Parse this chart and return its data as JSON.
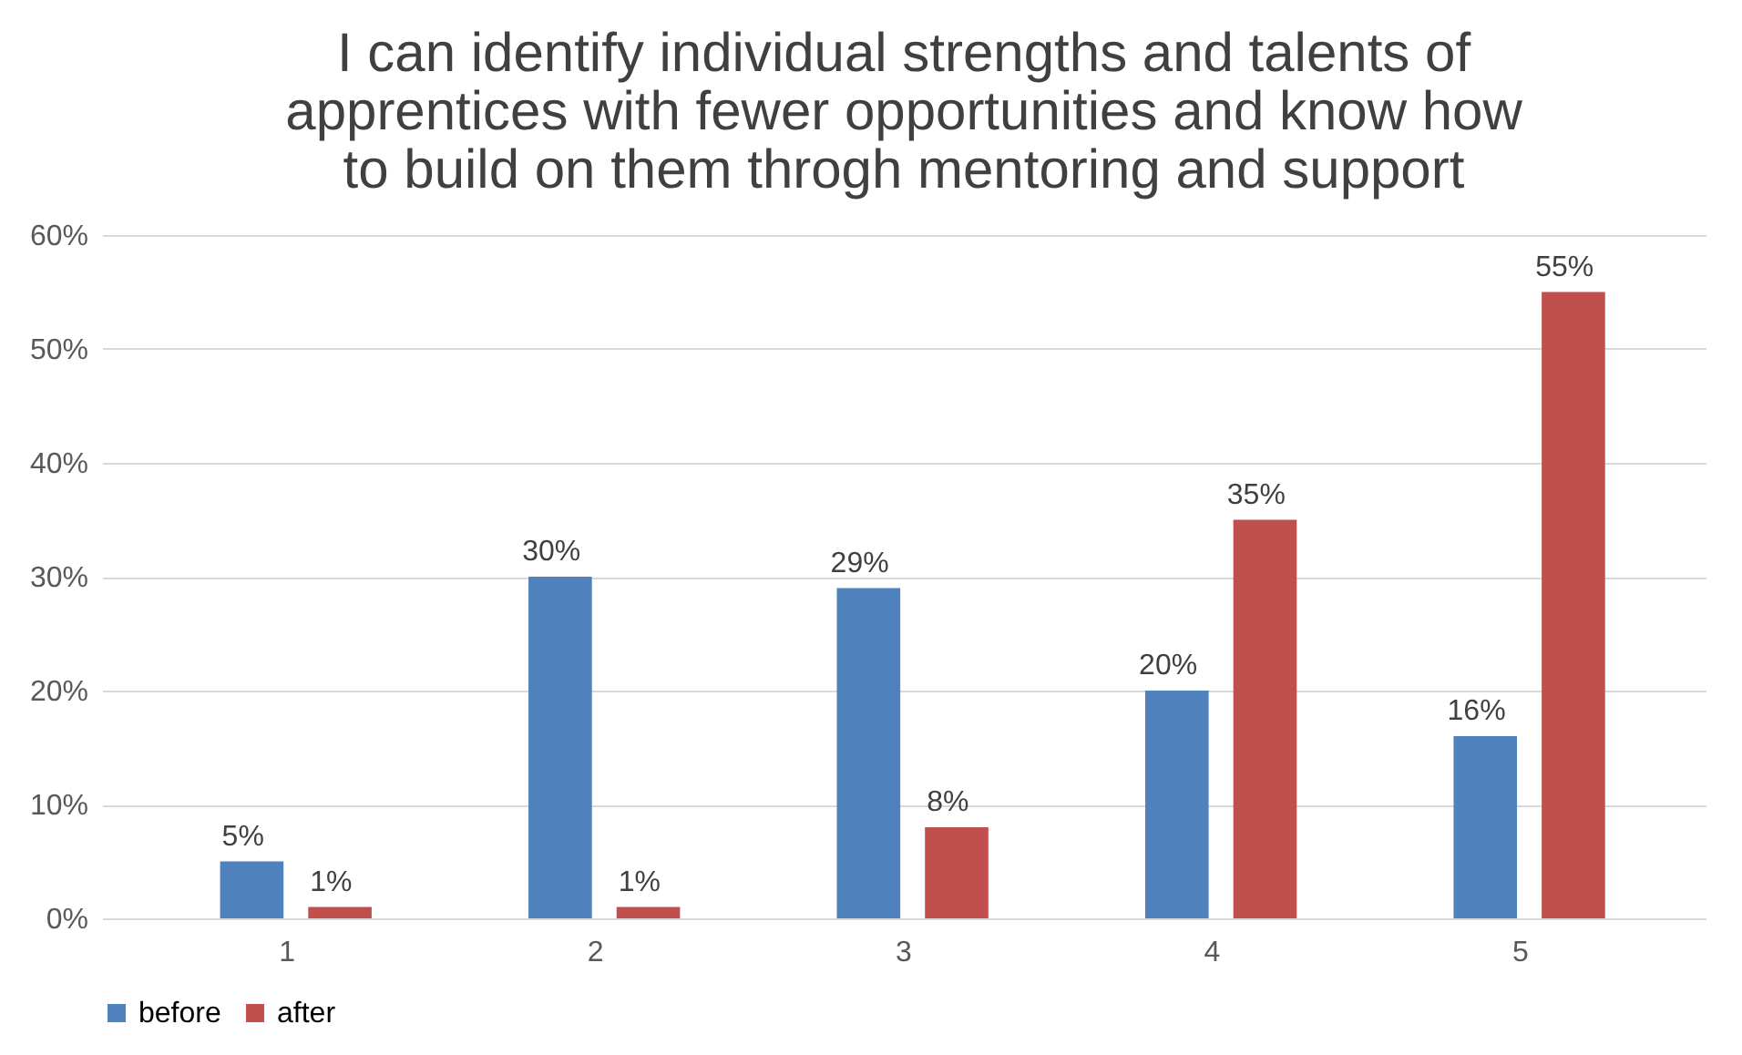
{
  "chart_data": {
    "type": "bar",
    "title": "I can identify individual strengths and talents of apprentices with fewer opportunities and know how to build on them throgh mentoring and support",
    "categories": [
      "1",
      "2",
      "3",
      "4",
      "5"
    ],
    "series": [
      {
        "name": "before",
        "color": "#4f81bd",
        "values": [
          5,
          30,
          29,
          20,
          16
        ],
        "value_labels": [
          "5%",
          "30%",
          "29%",
          "20%",
          "16%"
        ]
      },
      {
        "name": "after",
        "color": "#c0504d",
        "values": [
          1,
          1,
          8,
          35,
          55
        ],
        "value_labels": [
          "1%",
          "1%",
          "8%",
          "35%",
          "55%"
        ]
      }
    ],
    "ylim": [
      0,
      60
    ],
    "yticks": [
      {
        "value": 0,
        "label": "0%"
      },
      {
        "value": 10,
        "label": "10%"
      },
      {
        "value": 20,
        "label": "20%"
      },
      {
        "value": 30,
        "label": "30%"
      },
      {
        "value": 40,
        "label": "40%"
      },
      {
        "value": 50,
        "label": "50%"
      },
      {
        "value": 60,
        "label": "60%"
      }
    ],
    "grid": "y",
    "legend": "bottom"
  }
}
